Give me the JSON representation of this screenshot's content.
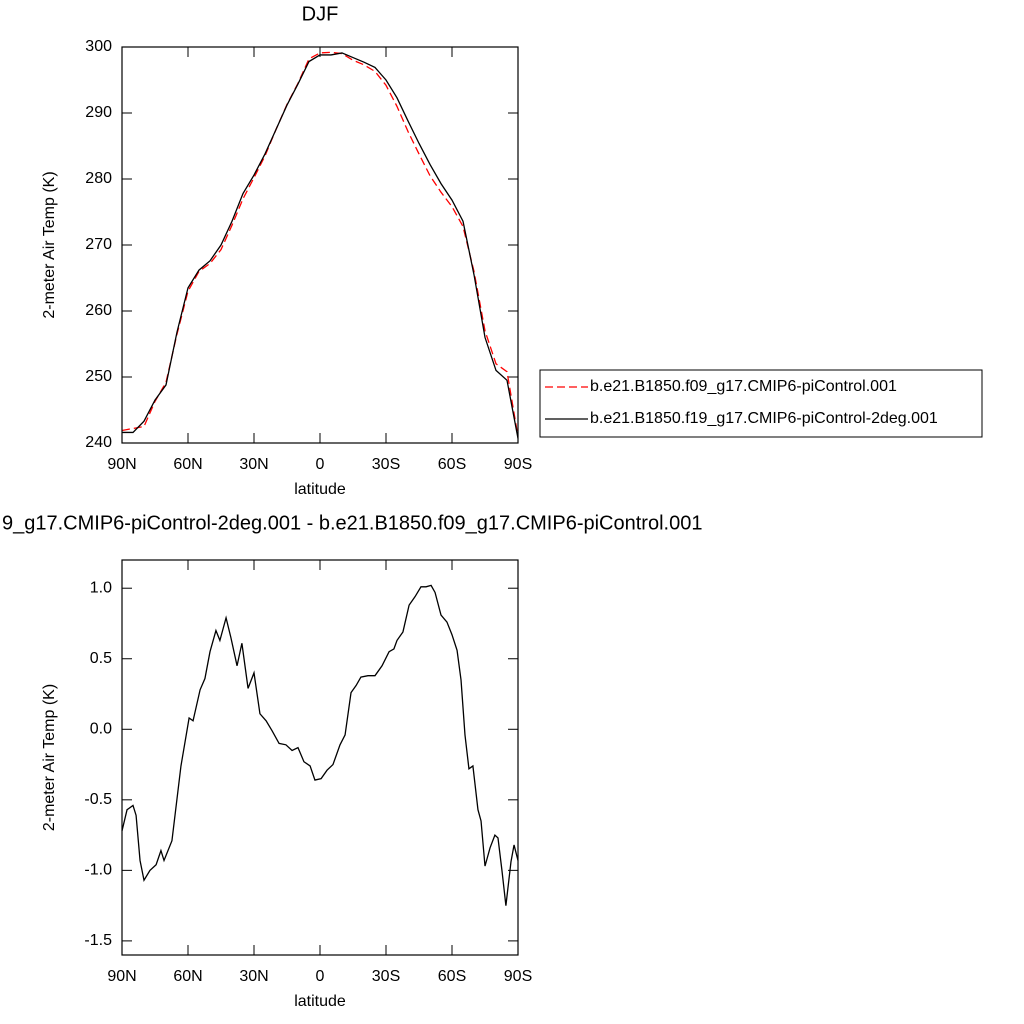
{
  "chart_data": [
    {
      "type": "line",
      "title": "DJF",
      "xlabel": "latitude",
      "ylabel": "2-meter Air Temp (K)",
      "x": [
        90,
        85,
        80,
        75,
        70,
        65,
        60,
        55,
        50,
        45,
        40,
        35,
        30,
        25,
        20,
        15,
        10,
        5,
        0,
        -5,
        -10,
        -15,
        -20,
        -25,
        -30,
        -35,
        -40,
        -45,
        -50,
        -55,
        -60,
        -65,
        -70,
        -75,
        -80,
        -85,
        -90
      ],
      "series": [
        {
          "name": "b.e21.B1850.f09_g17.CMIP6-piControl.001",
          "color": "#ff0000",
          "linestyle": "dashed",
          "values": [
            241.9,
            242.2,
            242.5,
            246.3,
            249.2,
            256.5,
            263,
            266,
            267.2,
            269.3,
            273,
            277,
            280.2,
            283.5,
            287.5,
            291.3,
            294.5,
            298.2,
            299.1,
            299.2,
            299.0,
            298.0,
            297.3,
            296.3,
            294.2,
            291,
            287.2,
            283.8,
            280.5,
            278,
            275.8,
            272.8,
            266,
            257,
            252,
            250.8,
            241
          ]
        },
        {
          "name": "b.e21.B1850.f19_g17.CMIP6-piControl-2deg.001",
          "color": "#000000",
          "linestyle": "solid",
          "values": [
            241.6,
            241.6,
            243.3,
            246.5,
            248.8,
            256.8,
            263.5,
            266.2,
            267.6,
            270,
            273.6,
            277.8,
            280.6,
            283.8,
            287.5,
            291.2,
            294.4,
            297.8,
            298.8,
            298.8,
            299.1,
            298.4,
            297.7,
            296.9,
            295,
            292.3,
            288.8,
            285.4,
            282.2,
            279.3,
            276.8,
            273.6,
            265.5,
            256,
            251,
            249.5,
            240.7
          ]
        }
      ],
      "xlim": [
        90,
        -90
      ],
      "xticks": [
        {
          "value": 90,
          "label": "90N"
        },
        {
          "value": 60,
          "label": "60N"
        },
        {
          "value": 30,
          "label": "30N"
        },
        0,
        {
          "value": -30,
          "label": "30S"
        },
        {
          "value": -60,
          "label": "60S"
        },
        {
          "value": -90,
          "label": "90S"
        }
      ],
      "ylim": [
        240,
        300
      ],
      "yticks": [
        240,
        250,
        260,
        270,
        280,
        290,
        300
      ],
      "legend": "right"
    },
    {
      "type": "line",
      "title": "9_g17.CMIP6-piControl-2deg.001 - b.e21.B1850.f09_g17.CMIP6-piControl.001",
      "xlabel": "latitude",
      "ylabel": "2-meter Air Temp (K)",
      "x": [
        90,
        87.7,
        85,
        83.6,
        81.8,
        80,
        77.3,
        74.5,
        72.3,
        70.9,
        67.3,
        63.2,
        59.5,
        57.7,
        54.5,
        52.3,
        50,
        47.3,
        45.5,
        42.7,
        40.5,
        37.7,
        35.5,
        32.7,
        30,
        27.3,
        24.5,
        21.8,
        18.6,
        15.5,
        12.7,
        10,
        7.3,
        4.5,
        2.3,
        -0.5,
        -3.2,
        -5.9,
        -9.1,
        -11.4,
        -14.1,
        -16.4,
        -18.6,
        -21.8,
        -25,
        -28.2,
        -31.4,
        -33.6,
        -35,
        -37.7,
        -40.5,
        -43.2,
        -45.9,
        -48.2,
        -50.5,
        -52.3,
        -55,
        -57.7,
        -60,
        -62.3,
        -64.1,
        -65.9,
        -67.7,
        -69.5,
        -71.8,
        -73.2,
        -75,
        -77.3,
        -79.5,
        -80.9,
        -82.7,
        -84.5,
        -86.8,
        -88.2,
        -90
      ],
      "series": [
        {
          "color": "#000000",
          "linestyle": "solid",
          "values": [
            -0.72,
            -0.57,
            -0.54,
            -0.61,
            -0.93,
            -1.07,
            -1.0,
            -0.96,
            -0.86,
            -0.93,
            -0.79,
            -0.26,
            0.08,
            0.06,
            0.28,
            0.36,
            0.55,
            0.7,
            0.63,
            0.79,
            0.65,
            0.45,
            0.61,
            0.29,
            0.4,
            0.11,
            0.06,
            -0.01,
            -0.1,
            -0.11,
            -0.15,
            -0.13,
            -0.23,
            -0.26,
            -0.36,
            -0.35,
            -0.29,
            -0.25,
            -0.11,
            -0.04,
            0.26,
            0.31,
            0.37,
            0.38,
            0.38,
            0.45,
            0.55,
            0.57,
            0.63,
            0.69,
            0.88,
            0.94,
            1.01,
            1.01,
            1.02,
            0.97,
            0.81,
            0.76,
            0.67,
            0.56,
            0.35,
            -0.04,
            -0.28,
            -0.26,
            -0.57,
            -0.65,
            -0.97,
            -0.84,
            -0.75,
            -0.77,
            -1.0,
            -1.25,
            -0.94,
            -0.82,
            -0.93
          ]
        }
      ],
      "xlim": [
        90,
        -90
      ],
      "xticks": [
        {
          "value": 90,
          "label": "90N"
        },
        {
          "value": 60,
          "label": "60N"
        },
        {
          "value": 30,
          "label": "30N"
        },
        0,
        {
          "value": -30,
          "label": "30S"
        },
        {
          "value": -60,
          "label": "60S"
        },
        {
          "value": -90,
          "label": "90S"
        }
      ],
      "ylim": [
        -1.6,
        1.2
      ],
      "yticks": [
        {
          "value": -1.5,
          "label": "-1.5"
        },
        {
          "value": -1,
          "label": "-1.0"
        },
        {
          "value": -0.5,
          "label": "-0.5"
        },
        {
          "value": 0,
          "label": "0.0"
        },
        {
          "value": 0.5,
          "label": "0.5"
        },
        {
          "value": 1,
          "label": "1.0"
        }
      ]
    }
  ]
}
